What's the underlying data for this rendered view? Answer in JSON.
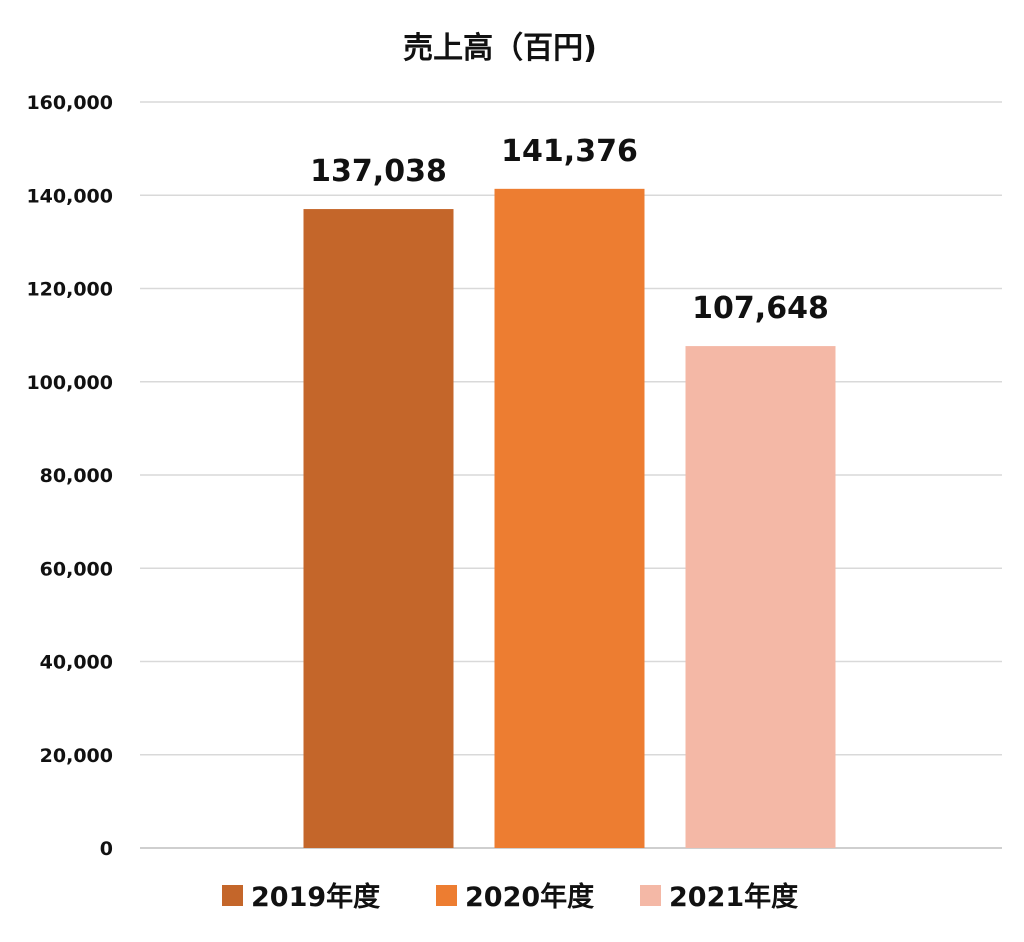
{
  "chart_data": {
    "type": "bar",
    "title": "売上高（百円)",
    "categories": [
      "2019年度",
      "2020年度",
      "2021年度"
    ],
    "values": [
      137038,
      141376,
      107648
    ],
    "data_labels": [
      "137,038",
      "141,376",
      "107,648"
    ],
    "colors": [
      "#c4662a",
      "#ed7d31",
      "#f4b8a6"
    ],
    "ylim": [
      0,
      160000
    ],
    "yticks": [
      0,
      20000,
      40000,
      60000,
      80000,
      100000,
      120000,
      140000,
      160000
    ],
    "ytick_labels": [
      "0",
      "20,000",
      "40,000",
      "60,000",
      "80,000",
      "100,000",
      "120,000",
      "140,000",
      "160,000"
    ],
    "grid": true,
    "legend": {
      "placement": "bottom",
      "entries": [
        "2019年度",
        "2020年度",
        "2021年度"
      ]
    }
  }
}
